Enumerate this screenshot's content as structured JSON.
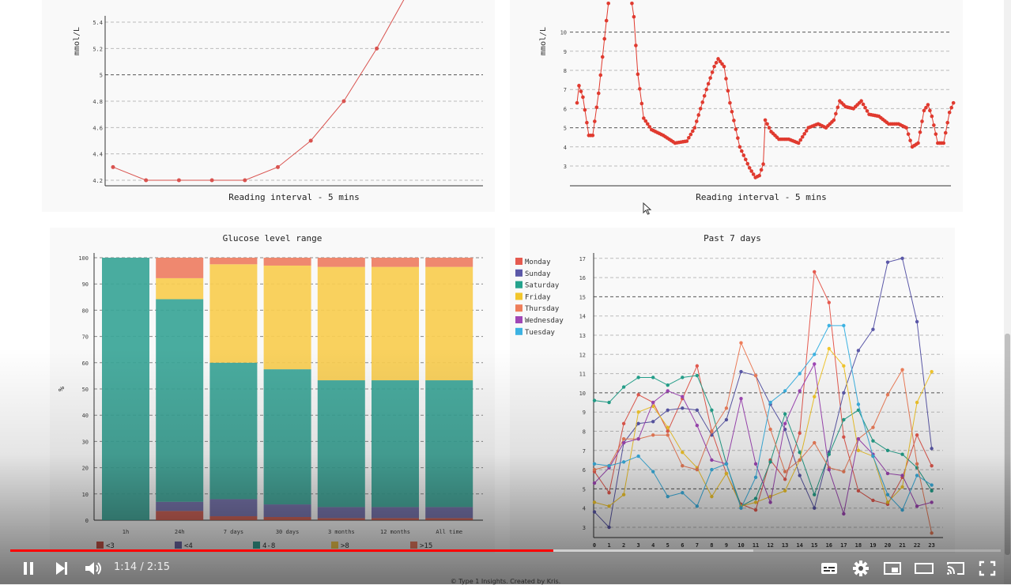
{
  "top_left": {
    "ylabel": "mmol/L",
    "xlabel": "Reading interval - 5 mins"
  },
  "top_right": {
    "ylabel": "mmol/L",
    "xlabel": "Reading interval - 5 mins"
  },
  "glucose_range": {
    "title": "Glucose level range",
    "ylabel": "%"
  },
  "past7": {
    "title": "Past 7 days"
  },
  "footer": "© Type 1 Insights. Created by Kris.",
  "player": {
    "current_time": "1:14",
    "duration": "2:15",
    "time_display": "1:14 / 2:15",
    "played_fraction": 0.548,
    "loaded_fraction": 0.75,
    "accent": "#ff0000"
  },
  "icons": {
    "play_pause": "pause-icon",
    "next": "next-icon",
    "volume": "volume-icon",
    "subtitles": "subtitles-icon",
    "settings": "gear-icon",
    "miniplayer": "miniplayer-icon",
    "theater": "theater-icon",
    "cast": "cast-icon",
    "fullscreen": "fullscreen-icon"
  },
  "chart_data": [
    {
      "type": "line",
      "ylabel": "mmol/L",
      "xlabel": "Reading interval - 5 mins",
      "ylim": [
        4.15,
        5.45
      ],
      "yticks": [
        4.2,
        4.4,
        4.6,
        4.8,
        5,
        5.2,
        5.4
      ],
      "ytick_labels": [
        "4.2",
        "4.4",
        "4.6",
        "4.8",
        "5",
        "5.2",
        "5.4"
      ],
      "grid": true,
      "color": "#d9534f",
      "x": [
        0,
        1,
        2,
        3,
        4,
        5,
        6,
        7,
        8,
        9
      ],
      "y": [
        4.3,
        4.2,
        4.2,
        4.2,
        4.2,
        4.3,
        4.5,
        4.8,
        5.2,
        5.65
      ]
    },
    {
      "type": "line",
      "ylabel": "mmol/L",
      "xlabel": "Reading interval - 5 mins",
      "ylim": [
        2.2,
        11.1
      ],
      "yticks": [
        3,
        4,
        5,
        6,
        7,
        8,
        9,
        10
      ],
      "ytick_labels": [
        "3",
        "4",
        "5",
        "6",
        "7",
        "8",
        "9",
        "10"
      ],
      "grid": true,
      "color": "#e03a2f",
      "key_points": [
        [
          0,
          6.3
        ],
        [
          1,
          7.2
        ],
        [
          3,
          6.6
        ],
        [
          6,
          4.6
        ],
        [
          8,
          4.6
        ],
        [
          11,
          6.8
        ],
        [
          15,
          10.6
        ],
        [
          16,
          11.5
        ],
        [
          28,
          11.5
        ],
        [
          29,
          10.8
        ],
        [
          31,
          7.8
        ],
        [
          34,
          5.5
        ],
        [
          38,
          4.9
        ],
        [
          44,
          4.6
        ],
        [
          50,
          4.2
        ],
        [
          56,
          4.3
        ],
        [
          60,
          5.0
        ],
        [
          66,
          7.0
        ],
        [
          70,
          8.2
        ],
        [
          72,
          8.6
        ],
        [
          75,
          8.2
        ],
        [
          78,
          6.3
        ],
        [
          83,
          4.0
        ],
        [
          88,
          2.9
        ],
        [
          91,
          2.4
        ],
        [
          93,
          2.5
        ],
        [
          95,
          3.1
        ],
        [
          96,
          5.4
        ],
        [
          99,
          4.8
        ],
        [
          103,
          4.4
        ],
        [
          108,
          4.4
        ],
        [
          113,
          4.2
        ],
        [
          118,
          5.0
        ],
        [
          123,
          5.2
        ],
        [
          127,
          5.0
        ],
        [
          131,
          5.4
        ],
        [
          134,
          6.4
        ],
        [
          137,
          6.1
        ],
        [
          141,
          6.0
        ],
        [
          145,
          6.4
        ],
        [
          149,
          5.7
        ],
        [
          154,
          5.6
        ],
        [
          159,
          5.2
        ],
        [
          164,
          5.2
        ],
        [
          168,
          5.0
        ],
        [
          171,
          4.0
        ],
        [
          174,
          4.2
        ],
        [
          177,
          5.9
        ],
        [
          179,
          6.2
        ],
        [
          181,
          5.6
        ],
        [
          184,
          4.2
        ],
        [
          187,
          4.2
        ],
        [
          190,
          5.8
        ],
        [
          192,
          6.3
        ]
      ]
    },
    {
      "type": "bar",
      "title": "Glucose level range",
      "ylabel": "%",
      "ylim": [
        0,
        100
      ],
      "yticks": [
        0,
        10,
        20,
        30,
        40,
        50,
        60,
        70,
        80,
        90,
        100
      ],
      "ytick_labels": [
        "0",
        "10",
        "20",
        "30",
        "40",
        "50",
        "60",
        "70",
        "80",
        "90",
        "100"
      ],
      "categories": [
        "1h",
        "24h",
        "7 days",
        "30 days",
        "3 months",
        "12 months",
        "All time"
      ],
      "legend_position": "bottom",
      "series": [
        {
          "name": "<3",
          "color": "#c9574b",
          "values": [
            0,
            3.5,
            1.5,
            1.2,
            0.8,
            0.8,
            0.8
          ]
        },
        {
          "name": "<4",
          "color": "#6f6ba8",
          "values": [
            0,
            3.5,
            6.5,
            4.8,
            4.2,
            4.2,
            4.2
          ]
        },
        {
          "name": "4-8",
          "color": "#3aa597",
          "values": [
            100,
            77.2,
            52,
            51.5,
            48.3,
            48.3,
            48.3
          ]
        },
        {
          "name": ">8",
          "color": "#f8cd50",
          "values": [
            0,
            8,
            37.5,
            39.5,
            43.2,
            43.2,
            43.2
          ]
        },
        {
          "name": ">15",
          "color": "#ee7e63",
          "values": [
            0,
            7.8,
            2.5,
            3,
            3.5,
            3.5,
            3.5
          ]
        }
      ]
    },
    {
      "type": "line",
      "title": "Past 7 days",
      "ylim": [
        2.5,
        17.4
      ],
      "yticks": [
        3,
        4,
        5,
        6,
        7,
        8,
        9,
        10,
        11,
        12,
        13,
        14,
        15,
        16,
        17
      ],
      "ytick_labels": [
        "3",
        "4",
        "5",
        "6",
        "7",
        "8",
        "9",
        "10",
        "11",
        "12",
        "13",
        "14",
        "15",
        "16",
        "17"
      ],
      "categories": [
        "0",
        "1",
        "2",
        "3",
        "4",
        "5",
        "6",
        "7",
        "8",
        "9",
        "10",
        "11",
        "12",
        "13",
        "14",
        "15",
        "16",
        "17",
        "18",
        "19",
        "20",
        "21",
        "22",
        "23"
      ],
      "legend_position": "top-left",
      "series": [
        {
          "name": "Monday",
          "color": "#e55a4f",
          "values": [
            5.9,
            4.8,
            8.4,
            9.9,
            9.5,
            8.0,
            9.7,
            11.4,
            8.0,
            5.8,
            4.2,
            3.9,
            6.5,
            5.5,
            7.9,
            16.3,
            14.7,
            7.7,
            4.9,
            4.4,
            4.2,
            5.6,
            7.8,
            6.2
          ]
        },
        {
          "name": "Sunday",
          "color": "#5b58a8",
          "values": [
            3.8,
            3.0,
            7.4,
            8.4,
            8.5,
            9.1,
            9.2,
            9.1,
            7.8,
            8.6,
            11.1,
            10.9,
            9.4,
            8.1,
            5.7,
            4.0,
            6.9,
            10.0,
            12.2,
            13.3,
            16.8,
            17.0,
            13.7,
            7.1
          ]
        },
        {
          "name": "Saturday",
          "color": "#24a28c",
          "values": [
            9.6,
            9.5,
            10.3,
            10.8,
            10.8,
            10.4,
            10.8,
            10.9,
            9.1,
            6.3,
            4.1,
            4.5,
            6.4,
            8.9,
            6.9,
            4.7,
            6.8,
            8.6,
            9.1,
            7.5,
            7.0,
            6.8,
            6.1,
            4.9
          ]
        },
        {
          "name": "Friday",
          "color": "#f2c62c",
          "values": [
            4.3,
            4.1,
            4.7,
            9.0,
            9.3,
            8.2,
            6.9,
            6.1,
            4.6,
            5.8,
            4.1,
            4.3,
            4.6,
            4.9,
            6.5,
            9.8,
            12.3,
            11.4,
            7.0,
            6.7,
            4.3,
            5.1,
            9.5,
            11.1
          ]
        },
        {
          "name": "Thursday",
          "color": "#ee7e5a",
          "values": [
            6.0,
            6.2,
            7.6,
            7.6,
            7.8,
            7.8,
            6.2,
            6.0,
            8.0,
            9.2,
            12.6,
            10.9,
            8.1,
            5.9,
            6.5,
            7.4,
            6.1,
            5.9,
            7.6,
            8.2,
            9.9,
            11.2,
            6.3,
            2.7
          ]
        },
        {
          "name": "Wednesday",
          "color": "#a047b6",
          "values": [
            5.3,
            6.1,
            7.4,
            7.6,
            9.5,
            10.1,
            9.8,
            8.3,
            6.5,
            6.3,
            9.7,
            6.3,
            4.3,
            8.4,
            10.1,
            11.5,
            6.0,
            3.7,
            7.6,
            6.8,
            5.8,
            5.7,
            4.1,
            4.3
          ]
        },
        {
          "name": "Tuesday",
          "color": "#3cb2e2",
          "values": [
            6.3,
            6.2,
            6.4,
            6.7,
            5.9,
            4.6,
            4.8,
            4.1,
            6.0,
            6.3,
            4.0,
            5.6,
            9.5,
            10.1,
            11.0,
            12.0,
            13.5,
            13.5,
            9.4,
            6.7,
            4.7,
            3.9,
            5.7,
            5.2
          ]
        }
      ]
    }
  ]
}
